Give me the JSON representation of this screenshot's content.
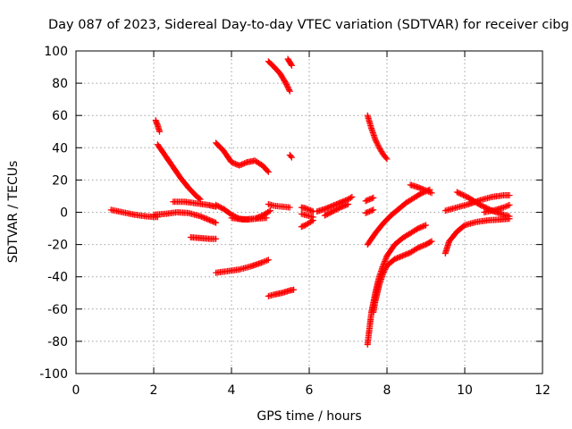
{
  "chart_data": {
    "type": "scatter",
    "title": "Day 087 of 2023, Sidereal Day-to-day VTEC variation (SDTVAR) for receiver cibg",
    "xlabel": "GPS time / hours",
    "ylabel": "SDTVAR / TECUs",
    "xlim": [
      0,
      12
    ],
    "ylim": [
      -100,
      100
    ],
    "xticks": [
      0,
      2,
      4,
      6,
      8,
      10,
      12
    ],
    "yticks": [
      -100,
      -80,
      -60,
      -40,
      -20,
      0,
      20,
      40,
      60,
      80,
      100
    ],
    "grid": true,
    "marker": "plus",
    "color": "#ff0000",
    "series": [
      {
        "x": [
          0.9,
          1.2,
          1.5,
          1.8,
          2.1
        ],
        "y": [
          1.5,
          0.0,
          -1.5,
          -2.5,
          -3.0
        ]
      },
      {
        "x": [
          2.0,
          2.3,
          2.6,
          2.9,
          3.2,
          3.6
        ],
        "y": [
          -1.5,
          -1.0,
          0.0,
          -0.5,
          -2.5,
          -6.5
        ]
      },
      {
        "x": [
          2.05,
          2.1,
          2.15
        ],
        "y": [
          57,
          54,
          50
        ]
      },
      {
        "x": [
          2.1,
          2.3,
          2.5,
          2.7,
          2.9,
          3.1,
          3.2
        ],
        "y": [
          42,
          35,
          28,
          21,
          15,
          10,
          8
        ]
      },
      {
        "x": [
          2.5,
          2.8,
          3.1,
          3.4,
          3.6
        ],
        "y": [
          6.5,
          6.5,
          5.5,
          4.5,
          3.5
        ]
      },
      {
        "x": [
          2.95,
          3.2,
          3.45,
          3.6
        ],
        "y": [
          -15.5,
          -16,
          -16.5,
          -16.5
        ]
      },
      {
        "x": [
          3.6,
          3.8,
          4.0,
          4.2,
          4.4,
          4.6,
          4.8,
          4.95
        ],
        "y": [
          43,
          38,
          31,
          29,
          31,
          32,
          29,
          25
        ]
      },
      {
        "x": [
          3.6,
          3.9,
          4.2,
          4.5,
          4.8,
          4.95
        ],
        "y": [
          -37.5,
          -36.5,
          -35.5,
          -33.5,
          -31.0,
          -29.5
        ]
      },
      {
        "x": [
          3.6,
          3.8,
          4.0,
          4.2,
          4.4,
          4.6,
          4.8,
          5.0
        ],
        "y": [
          4.5,
          2.0,
          -1.5,
          -4.0,
          -4.5,
          -4.0,
          -2.0,
          1.0
        ]
      },
      {
        "x": [
          4.0,
          4.3,
          4.6,
          4.9
        ],
        "y": [
          -3.5,
          -4.5,
          -4.0,
          -3.5
        ]
      },
      {
        "x": [
          4.95,
          5.1,
          5.25,
          5.4,
          5.5
        ],
        "y": [
          93.5,
          90,
          86,
          80,
          75
        ]
      },
      {
        "x": [
          5.45,
          5.5,
          5.55
        ],
        "y": [
          95,
          93,
          91
        ]
      },
      {
        "x": [
          5.5,
          5.55
        ],
        "y": [
          35.5,
          34.0
        ]
      },
      {
        "x": [
          4.95,
          5.1,
          5.3,
          5.5,
          5.6
        ],
        "y": [
          -52,
          -51,
          -50,
          -48.5,
          -48
        ]
      },
      {
        "x": [
          4.95,
          5.1,
          5.3,
          5.5
        ],
        "y": [
          5.0,
          4.0,
          3.5,
          3.0
        ]
      },
      {
        "x": [
          5.8,
          5.9,
          6.0,
          6.1
        ],
        "y": [
          3.0,
          2.5,
          1.5,
          0.5
        ]
      },
      {
        "x": [
          5.8,
          5.9,
          6.0,
          6.1
        ],
        "y": [
          -9.0,
          -8.0,
          -6.5,
          -5.0
        ]
      },
      {
        "x": [
          5.8,
          5.95,
          6.1
        ],
        "y": [
          -1.0,
          -2.0,
          -3.0
        ]
      },
      {
        "x": [
          6.2,
          6.4,
          6.6,
          6.8,
          7.0,
          7.1
        ],
        "y": [
          0.5,
          2.0,
          4.0,
          6.0,
          8.0,
          9.5
        ]
      },
      {
        "x": [
          6.4,
          6.6,
          6.8,
          7.0
        ],
        "y": [
          -2.0,
          0.5,
          3.0,
          5.0
        ]
      },
      {
        "x": [
          7.45,
          7.55,
          7.65
        ],
        "y": [
          -0.5,
          0.5,
          1.5
        ]
      },
      {
        "x": [
          7.45,
          7.55,
          7.65
        ],
        "y": [
          7.0,
          8.0,
          9.0
        ]
      },
      {
        "x": [
          7.5,
          7.6,
          7.7,
          7.8,
          7.9,
          8.0
        ],
        "y": [
          60,
          52,
          45,
          40,
          36,
          33
        ]
      },
      {
        "x": [
          7.5,
          7.7,
          7.9,
          8.1,
          8.3,
          8.5,
          8.7,
          8.9,
          9.1
        ],
        "y": [
          -20,
          -13,
          -7,
          -2,
          2,
          6,
          9,
          12,
          14
        ]
      },
      {
        "x": [
          7.5,
          7.55,
          7.6,
          7.7,
          7.8,
          7.9,
          8.0,
          8.2,
          8.4,
          8.6,
          8.8,
          9.0
        ],
        "y": [
          -82,
          -72,
          -62,
          -50,
          -40,
          -33,
          -27,
          -20,
          -16,
          -13,
          -10,
          -8
        ]
      },
      {
        "x": [
          7.65,
          7.7,
          7.8,
          7.9,
          8.0,
          8.2,
          8.4,
          8.6,
          8.8,
          9.0,
          9.15
        ],
        "y": [
          -62,
          -55,
          -45,
          -38,
          -33,
          -29,
          -27,
          -25,
          -22,
          -20,
          -18
        ]
      },
      {
        "x": [
          8.6,
          8.8,
          9.0,
          9.15
        ],
        "y": [
          17,
          15.5,
          13.5,
          12
        ]
      },
      {
        "x": [
          9.5,
          9.6,
          9.8,
          10.0,
          10.3,
          10.6,
          10.9,
          11.15
        ],
        "y": [
          -25.5,
          -18,
          -12,
          -8,
          -6,
          -5,
          -4.5,
          -4
        ]
      },
      {
        "x": [
          9.5,
          9.8,
          10.1,
          10.4,
          10.7,
          11.0,
          11.15
        ],
        "y": [
          1.0,
          3.0,
          5.0,
          7.5,
          9.5,
          10.5,
          10.5
        ]
      },
      {
        "x": [
          9.8,
          10.1,
          10.4,
          10.7,
          11.0,
          11.15
        ],
        "y": [
          12.5,
          9.0,
          4.5,
          1.0,
          -1.5,
          -2.5
        ]
      },
      {
        "x": [
          10.5,
          10.8,
          11.0,
          11.15
        ],
        "y": [
          0.0,
          1.5,
          3.0,
          4.5
        ]
      }
    ]
  }
}
